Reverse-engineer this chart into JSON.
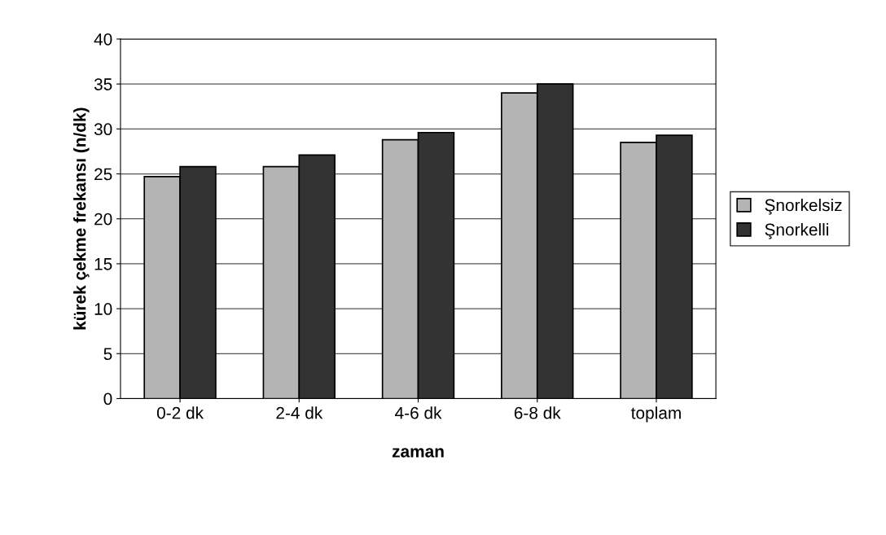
{
  "chart_data": {
    "type": "bar",
    "xlabel": "zaman",
    "ylabel": "kürek çekme frekansı (n/dk)",
    "categories": [
      "0-2 dk",
      "2-4 dk",
      "4-6 dk",
      "6-8 dk",
      "toplam"
    ],
    "series": [
      {
        "name": "Şnorkelsiz",
        "color": "#b4b4b4",
        "values": [
          24.7,
          25.8,
          28.8,
          34.0,
          28.5
        ]
      },
      {
        "name": "Şnorkelli",
        "color": "#333333",
        "values": [
          25.8,
          27.1,
          29.6,
          35.0,
          29.3
        ]
      }
    ],
    "ylim": [
      0,
      40
    ],
    "yticks": [
      0,
      5,
      10,
      15,
      20,
      25,
      30,
      35,
      40
    ],
    "grid": "y",
    "legend": "right"
  }
}
